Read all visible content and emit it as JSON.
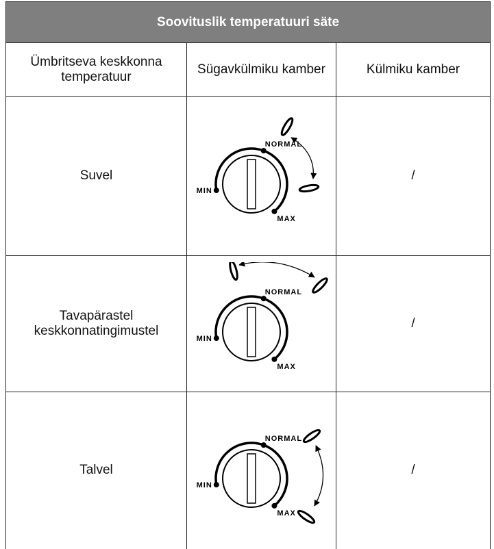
{
  "header": {
    "title": "Soovituslik temperatuuri säte"
  },
  "table": {
    "columns": [
      "Ümbritseva keskkonna temperatuur",
      "Sügavkülmiku kamber",
      "Külmiku kamber"
    ],
    "rows": [
      {
        "condition": "Suvel",
        "dial": {
          "normal": "NORMAL",
          "min": "MIN",
          "max": "MAX"
        },
        "fridge": "/"
      },
      {
        "condition": "Tavapärastel keskkonnatingimustel",
        "dial": {
          "normal": "NORMAL",
          "min": "MIN",
          "max": "MAX"
        },
        "fridge": "/"
      },
      {
        "condition": "Talvel",
        "dial": {
          "normal": "NORMAL",
          "min": "MIN",
          "max": "MAX"
        },
        "fridge": "/"
      }
    ]
  }
}
